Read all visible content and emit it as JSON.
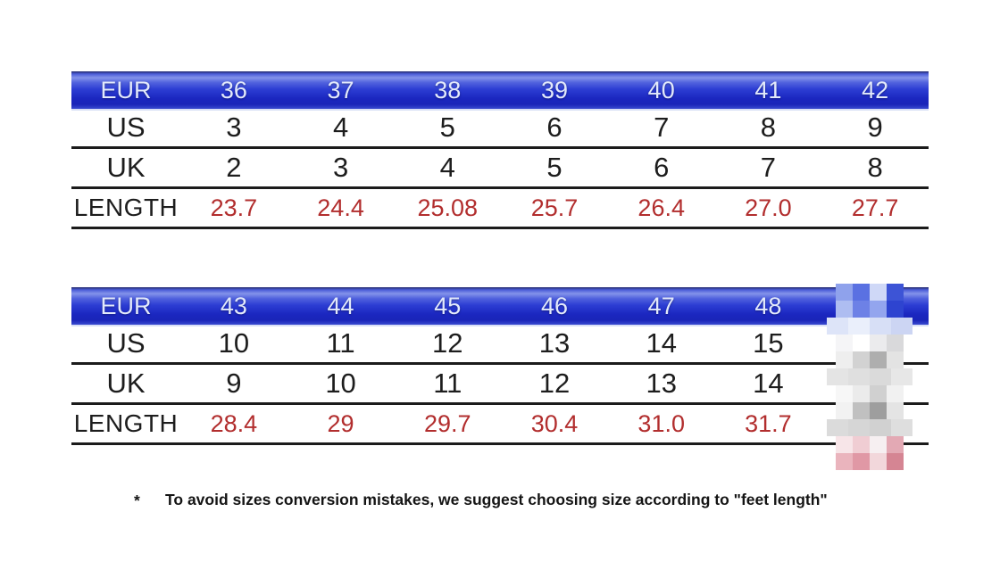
{
  "colors": {
    "header_blue_dark": "#1b27c0",
    "header_blue_light": "#8493ea",
    "header_text": "#e2e9fb",
    "body_text": "#1d1d1d",
    "length_red": "#b22e2e",
    "rule_line": "#1b1b1b",
    "background": "#ffffff"
  },
  "tables": [
    {
      "name": "size-table-36-42",
      "rows": [
        {
          "kind": "header",
          "label": "EUR",
          "values": [
            "36",
            "37",
            "38",
            "39",
            "40",
            "41",
            "42"
          ]
        },
        {
          "kind": "us",
          "label": "US",
          "values": [
            "3",
            "4",
            "5",
            "6",
            "7",
            "8",
            "9"
          ]
        },
        {
          "kind": "uk",
          "label": "UK",
          "values": [
            "2",
            "3",
            "4",
            "5",
            "6",
            "7",
            "8"
          ]
        },
        {
          "kind": "length",
          "label": "LENGTH",
          "values": [
            "23.7",
            "24.4",
            "25.08",
            "25.7",
            "26.4",
            "27.0",
            "27.7"
          ]
        }
      ]
    },
    {
      "name": "size-table-43-48",
      "rows": [
        {
          "kind": "header",
          "label": "EUR",
          "values": [
            "43",
            "44",
            "45",
            "46",
            "47",
            "48",
            ""
          ]
        },
        {
          "kind": "us",
          "label": "US",
          "values": [
            "10",
            "11",
            "12",
            "13",
            "14",
            "15",
            ""
          ]
        },
        {
          "kind": "uk",
          "label": "UK",
          "values": [
            "9",
            "10",
            "11",
            "12",
            "13",
            "14",
            ""
          ]
        },
        {
          "kind": "length",
          "label": "LENGTH",
          "values": [
            "28.4",
            "29",
            "29.7",
            "30.4",
            "31.0",
            "31.7",
            ""
          ]
        }
      ]
    }
  ],
  "footnote": {
    "marker": "*",
    "text": "To avoid sizes conversion mistakes, we suggest choosing size according to \"feet length\""
  },
  "mosaic": {
    "rows": [
      {
        "wide": false,
        "colors": [
          "#8fa2ec",
          "#5a71e2",
          "#cfd8f7",
          "#3d54d6"
        ]
      },
      {
        "wide": false,
        "colors": [
          "#aebdf1",
          "#6d81e6",
          "#93a5ee",
          "#2e44d0"
        ]
      },
      {
        "wide": true,
        "colors": [
          "#dde4f8",
          "#eaeffb",
          "#d7dff6",
          "#ccd5f3"
        ]
      },
      {
        "wide": false,
        "colors": [
          "#f5f5f7",
          "#ffffff",
          "#ebebed",
          "#d9d9db"
        ]
      },
      {
        "wide": false,
        "colors": [
          "#eeeeee",
          "#d2d2d2",
          "#aeaeae",
          "#e3e3e3"
        ]
      },
      {
        "wide": true,
        "colors": [
          "#e4e4e4",
          "#dfdfdf",
          "#dadada",
          "#e7e7e7"
        ]
      },
      {
        "wide": false,
        "colors": [
          "#f7f7f7",
          "#ebebeb",
          "#d0d0d0",
          "#f1f1f1"
        ]
      },
      {
        "wide": false,
        "colors": [
          "#f2f2f2",
          "#c0c0c0",
          "#9e9e9e",
          "#e4e4e4"
        ]
      },
      {
        "wide": true,
        "colors": [
          "#dbdbdb",
          "#d6d6d6",
          "#d1d1d1",
          "#dedede"
        ]
      },
      {
        "wide": false,
        "colors": [
          "#f7e5e8",
          "#f0cdd3",
          "#f6eff1",
          "#e3a9b4"
        ]
      },
      {
        "wide": false,
        "colors": [
          "#eab4bd",
          "#e098a5",
          "#f2d7db",
          "#d58593"
        ]
      }
    ]
  }
}
